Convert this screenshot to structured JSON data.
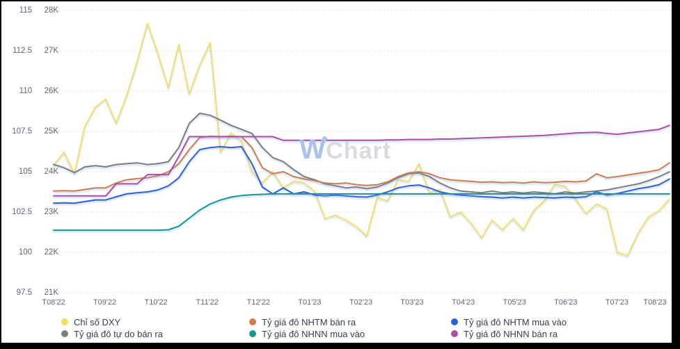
{
  "watermark": {
    "brand_w": "W",
    "brand_rest": "Chart"
  },
  "axes": {
    "dxy_ticks": [
      "115",
      "112.5",
      "110",
      "107.5",
      "105",
      "102.5",
      "100",
      "97.5"
    ],
    "rate_ticks": [
      "28K",
      "27K",
      "26K",
      "25K",
      "24K",
      "23K",
      "22K",
      "21K"
    ],
    "x_ticks": [
      "T08'22",
      "T09'22",
      "T10'22",
      "T11'22",
      "T12'22",
      "T01'23",
      "T02'23",
      "T03'23",
      "T04'23",
      "T05'23",
      "T06'23",
      "T07'23",
      "T08'23"
    ]
  },
  "legend": [
    {
      "label": "Chỉ số DXY",
      "color": "#f3df5e",
      "series": "dxy"
    },
    {
      "label": "Tỷ giá đô NHTM bán ra",
      "color": "#ce7e4d",
      "series": "nhtm_ban_ra"
    },
    {
      "label": "Tỷ giá đô NHTM mua vào",
      "color": "#2a5fe0",
      "series": "nhtm_mua_vao"
    },
    {
      "label": "Tỷ giá đô tự do bán ra",
      "color": "#7d7d7d",
      "series": "tu_do_ban_ra"
    },
    {
      "label": "Tỷ giá đô NHNN mua vào",
      "color": "#18988c",
      "series": "nhnn_mua_vao"
    },
    {
      "label": "Tỷ giá đô NHNN bán ra",
      "color": "#ad4fa0",
      "series": "nhnn_ban_ra"
    }
  ],
  "chart_data": {
    "type": "line",
    "title": "",
    "x_range": [
      "T08'22",
      "T08'23"
    ],
    "x_note": "monthly ticks Aug 2022 - Aug 2023, series sampled ~weekly (60 points)",
    "grid": "horizontal-dotted",
    "legend_position": "bottom",
    "axis_dxy": {
      "min": 97.5,
      "max": 115,
      "tick_step": 2.5
    },
    "axis_rate_thousand_vnd": {
      "min": 21,
      "max": 28,
      "tick_step": 1
    },
    "series": [
      {
        "key": "dxy",
        "name": "Chỉ số DXY",
        "axis": "dxy",
        "color": "#f3df5e",
        "values": [
          105.4,
          106.2,
          104.9,
          107.8,
          109.0,
          109.5,
          108.0,
          109.7,
          111.8,
          114.2,
          112.3,
          110.2,
          112.9,
          109.8,
          111.6,
          113.0,
          106.2,
          107.4,
          106.9,
          105.0,
          104.3,
          105.0,
          104.0,
          104.4,
          104.3,
          103.8,
          102.1,
          102.3,
          102.0,
          101.6,
          101.0,
          103.4,
          103.2,
          104.5,
          104.4,
          105.5,
          103.7,
          103.9,
          102.2,
          102.5,
          101.8,
          100.9,
          102.0,
          101.4,
          102.1,
          101.4,
          102.6,
          103.2,
          104.2,
          104.1,
          103.3,
          102.4,
          103.0,
          102.7,
          100.0,
          99.8,
          101.2,
          102.2,
          102.6,
          103.3
        ]
      },
      {
        "key": "tu_do_ban_ra",
        "name": "Tỷ giá đô tự do bán ra",
        "axis": "rate",
        "color": "#7d7d7d",
        "values": [
          24.18,
          24.1,
          23.98,
          24.12,
          24.15,
          24.12,
          24.18,
          24.2,
          24.22,
          24.18,
          24.2,
          24.25,
          24.6,
          25.2,
          25.45,
          25.4,
          25.28,
          25.15,
          25.05,
          24.95,
          24.6,
          24.35,
          24.25,
          24.05,
          23.88,
          23.8,
          23.7,
          23.65,
          23.6,
          23.62,
          23.58,
          23.62,
          23.72,
          23.85,
          23.95,
          23.97,
          23.88,
          23.72,
          23.6,
          23.52,
          23.5,
          23.48,
          23.52,
          23.48,
          23.5,
          23.47,
          23.5,
          23.48,
          23.45,
          23.5,
          23.47,
          23.5,
          23.52,
          23.55,
          23.6,
          23.65,
          23.7,
          23.78,
          23.88,
          24.0
        ]
      },
      {
        "key": "nhtm_ban_ra",
        "name": "Tỷ giá đô NHTM bán ra",
        "axis": "rate",
        "color": "#ce7e4d",
        "values": [
          23.52,
          23.53,
          23.52,
          23.56,
          23.6,
          23.6,
          23.72,
          23.8,
          23.83,
          23.85,
          23.9,
          24.0,
          24.2,
          24.55,
          24.85,
          24.88,
          24.87,
          24.88,
          24.87,
          24.6,
          24.1,
          23.95,
          24.0,
          23.88,
          23.82,
          23.78,
          23.72,
          23.7,
          23.72,
          23.68,
          23.66,
          23.68,
          23.75,
          23.88,
          23.97,
          24.0,
          23.95,
          23.85,
          23.8,
          23.78,
          23.76,
          23.74,
          23.75,
          23.73,
          23.74,
          23.72,
          23.75,
          23.73,
          23.74,
          23.76,
          23.75,
          23.77,
          23.95,
          23.85,
          23.88,
          23.92,
          23.96,
          24.0,
          24.05,
          24.22
        ]
      },
      {
        "key": "nhtm_mua_vao",
        "name": "Tỷ giá đô NHTM mua vào",
        "axis": "rate",
        "color": "#2a5fe0",
        "values": [
          23.22,
          23.23,
          23.22,
          23.26,
          23.3,
          23.3,
          23.38,
          23.45,
          23.48,
          23.5,
          23.55,
          23.65,
          23.85,
          24.25,
          24.55,
          24.6,
          24.62,
          24.6,
          24.62,
          24.2,
          23.62,
          23.45,
          23.6,
          23.45,
          23.5,
          23.42,
          23.4,
          23.42,
          23.4,
          23.38,
          23.37,
          23.42,
          23.5,
          23.6,
          23.65,
          23.67,
          23.6,
          23.5,
          23.45,
          23.42,
          23.4,
          23.38,
          23.37,
          23.35,
          23.37,
          23.35,
          23.37,
          23.36,
          23.35,
          23.37,
          23.36,
          23.38,
          23.5,
          23.42,
          23.46,
          23.52,
          23.58,
          23.62,
          23.68,
          23.82
        ]
      },
      {
        "key": "nhnn_mua_vao",
        "name": "Tỷ giá đô NHNN mua vào",
        "axis": "rate",
        "color": "#18988c",
        "values": [
          22.55,
          22.55,
          22.55,
          22.55,
          22.55,
          22.55,
          22.55,
          22.55,
          22.55,
          22.55,
          22.55,
          22.56,
          22.65,
          22.85,
          23.05,
          23.2,
          23.3,
          23.37,
          23.41,
          23.43,
          23.44,
          23.45,
          23.45,
          23.45,
          23.45,
          23.45,
          23.45,
          23.45,
          23.45,
          23.45,
          23.45,
          23.45,
          23.45,
          23.45,
          23.45,
          23.45,
          23.45,
          23.45,
          23.45,
          23.45,
          23.45,
          23.45,
          23.45,
          23.45,
          23.45,
          23.45,
          23.45,
          23.45,
          23.45,
          23.45,
          23.45,
          23.45,
          23.45,
          23.45,
          23.45,
          23.45,
          23.45,
          23.45,
          23.45,
          23.45
        ]
      },
      {
        "key": "nhnn_ban_ra",
        "name": "Tỷ giá đô NHNN bán ra",
        "axis": "rate",
        "color": "#ad4fa0",
        "values": [
          23.4,
          23.4,
          23.4,
          23.4,
          23.4,
          23.4,
          23.7,
          23.7,
          23.7,
          23.93,
          23.93,
          23.93,
          24.38,
          24.87,
          24.87,
          24.87,
          24.87,
          24.87,
          24.87,
          24.87,
          24.87,
          24.87,
          24.78,
          24.78,
          24.78,
          24.78,
          24.78,
          24.78,
          24.78,
          24.78,
          24.78,
          24.78,
          24.79,
          24.79,
          24.8,
          24.8,
          24.8,
          24.81,
          24.81,
          24.82,
          24.83,
          24.84,
          24.85,
          24.86,
          24.87,
          24.88,
          24.89,
          24.9,
          24.92,
          24.94,
          24.96,
          24.97,
          24.98,
          24.95,
          24.93,
          24.96,
          24.99,
          25.02,
          25.05,
          25.15
        ]
      }
    ]
  },
  "colors": {
    "background": "#ffffff",
    "frame": "#000000",
    "grid": "#d8dbe1",
    "axis_text": "#5c6676",
    "legend_text": "#36404e",
    "watermark_w": "#a9c3ef",
    "watermark_rest": "#d9dbe0"
  }
}
